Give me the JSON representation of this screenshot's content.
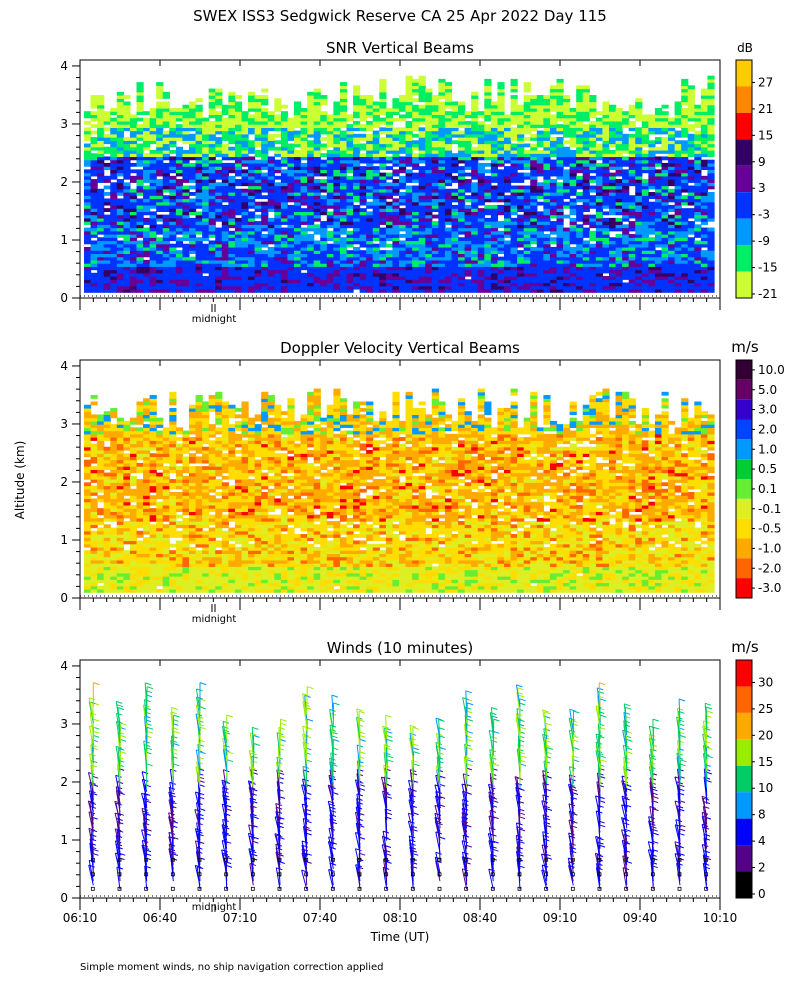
{
  "figure": {
    "title": "SWEX ISS3 Sedgwick Reserve CA  25 Apr 2022 Day 115",
    "ylabel": "Altitude (km)",
    "xlabel": "Time (UT)",
    "midnight_label": "midnight",
    "footnote": "Simple moment winds, no ship navigation correction applied"
  },
  "chart_data": [
    {
      "type": "heatmap",
      "title": "SNR Vertical Beams",
      "colorbar_unit": "dB",
      "ylim": [
        0,
        4
      ],
      "yticks": [
        "0",
        "1",
        "2",
        "3",
        "4"
      ],
      "colorbar_labels": [
        "27",
        "21",
        "15",
        "9",
        "3",
        "-3",
        "-9",
        "-15",
        "-21"
      ],
      "colorbar_colors": [
        "#ffcc00",
        "#ff8800",
        "#ff0000",
        "#330066",
        "#660099",
        "#0033ff",
        "#0099ff",
        "#00ee66",
        "#ccff33"
      ],
      "description_profile": [
        {
          "altitude": 0.2,
          "value": -3
        },
        {
          "altitude": 0.6,
          "value": -3
        },
        {
          "altitude": 1.0,
          "value": -6
        },
        {
          "altitude": 1.5,
          "value": -6
        },
        {
          "altitude": 2.0,
          "value": -3
        },
        {
          "altitude": 2.5,
          "value": -12
        },
        {
          "altitude": 3.0,
          "value": -18
        },
        {
          "altitude": 3.5,
          "value": -21
        }
      ]
    },
    {
      "type": "heatmap",
      "title": "Doppler Velocity Vertical Beams",
      "colorbar_unit": "m/s",
      "ylim": [
        0,
        4
      ],
      "yticks": [
        "0",
        "1",
        "2",
        "3",
        "4"
      ],
      "colorbar_labels": [
        "10.0",
        "5.0",
        "3.0",
        "2.0",
        "1.0",
        "0.5",
        "0.1",
        "-0.1",
        "-0.5",
        "-1.0",
        "-2.0",
        "-3.0"
      ],
      "colorbar_colors": [
        "#330033",
        "#660066",
        "#3300cc",
        "#0044ff",
        "#0099ff",
        "#00cc33",
        "#66ee33",
        "#ddee22",
        "#ffdd00",
        "#ffaa00",
        "#ff6600",
        "#ff0000"
      ],
      "description_profile": [
        {
          "altitude": 0.3,
          "value": -0.1
        },
        {
          "altitude": 1.0,
          "value": -0.5
        },
        {
          "altitude": 2.0,
          "value": -1.0
        },
        {
          "altitude": 3.0,
          "value": -0.5
        }
      ]
    },
    {
      "type": "scatter",
      "title": "Winds (10 minutes)",
      "colorbar_unit": "m/s",
      "ylim": [
        0,
        4
      ],
      "yticks": [
        "0",
        "1",
        "2",
        "3",
        "4"
      ],
      "x_ticks": [
        "06:10",
        "06:40",
        "07:10",
        "07:40",
        "08:10",
        "08:40",
        "09:10",
        "09:40",
        "10:10"
      ],
      "xlim": [
        "06:10",
        "10:10"
      ],
      "colorbar_labels": [
        "30",
        "25",
        "20",
        "15",
        "10",
        "8",
        "4",
        "2",
        "0"
      ],
      "colorbar_colors": [
        "#ff0000",
        "#ff6600",
        "#ffaa00",
        "#99ee00",
        "#00cc66",
        "#0099ff",
        "#0000ff",
        "#550088",
        "#000000"
      ],
      "profile_times": [
        "06:15",
        "06:25",
        "06:35",
        "06:45",
        "06:55",
        "07:05",
        "07:15",
        "07:25",
        "07:35",
        "07:45",
        "07:55",
        "08:05",
        "08:15",
        "08:25",
        "08:35",
        "08:45",
        "08:55",
        "09:05",
        "09:15",
        "09:25",
        "09:35",
        "09:45",
        "09:55",
        "10:05"
      ]
    }
  ]
}
